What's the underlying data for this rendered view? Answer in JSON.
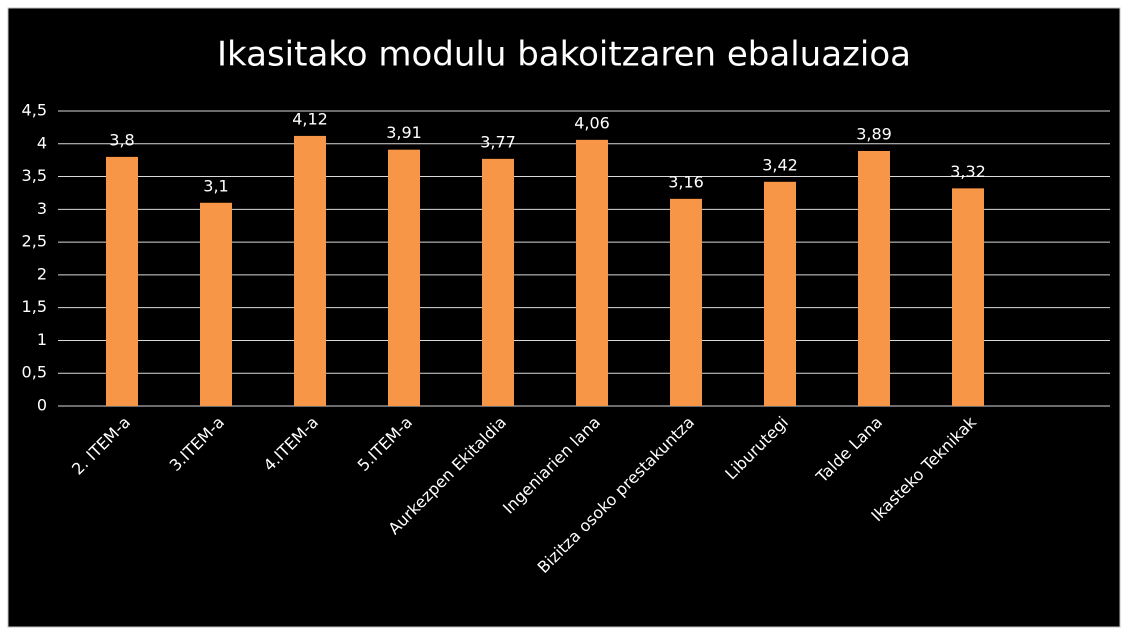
{
  "chart_data": {
    "type": "bar",
    "title": "Ikasitako modulu bakoitzaren ebaluazioa",
    "categories": [
      "2. ITEM-a",
      "3.ITEM-a",
      "4.ITEM-a",
      "5.ITEM-a",
      "Aurkezpen Ekitaldia",
      "Ingeniarien lana",
      "Bizitza osoko prestakuntza",
      "Liburutegi",
      "Talde Lana",
      "Ikasteko Teknikak"
    ],
    "values": [
      3.8,
      3.1,
      4.12,
      3.91,
      3.77,
      4.06,
      3.16,
      3.42,
      3.89,
      3.32
    ],
    "value_labels": [
      "3,8",
      "3,1",
      "4,12",
      "3,91",
      "3,77",
      "4,06",
      "3,16",
      "3,42",
      "3,89",
      "3,32"
    ],
    "color": "#f79646",
    "ylim": [
      0,
      4.5
    ],
    "yticks": [
      0,
      {
        "value": 0.5,
        "label": "0,5"
      },
      1,
      {
        "value": 1.5,
        "label": "1,5"
      },
      2,
      {
        "value": 2.5,
        "label": "2,5"
      },
      3,
      {
        "value": 3.5,
        "label": "3,5"
      },
      4,
      {
        "value": 4.5,
        "label": "4,5"
      }
    ],
    "grid": true
  }
}
